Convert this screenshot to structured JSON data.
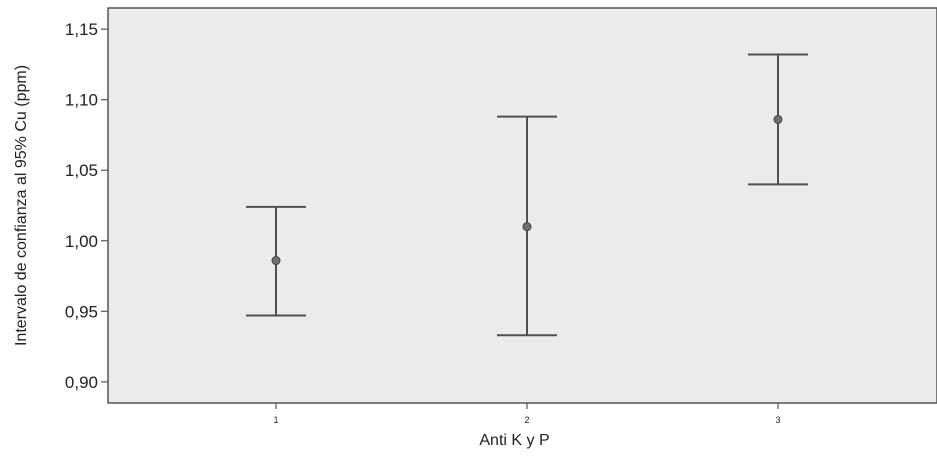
{
  "chart_data": {
    "type": "errorbar",
    "title": "",
    "xlabel": "Anti K y P",
    "ylabel": "Intervalo de confianza al 95% Cu (ppm)",
    "categories": [
      "1",
      "2",
      "3"
    ],
    "series": [
      {
        "points": [
          {
            "x": "1",
            "mean": 0.986,
            "lower": 0.947,
            "upper": 1.024
          },
          {
            "x": "2",
            "mean": 1.01,
            "lower": 0.933,
            "upper": 1.088
          },
          {
            "x": "3",
            "mean": 1.086,
            "lower": 1.04,
            "upper": 1.132
          }
        ]
      }
    ],
    "ylim": [
      0.885,
      1.165
    ],
    "yticks": [
      {
        "value": 0.9,
        "label": "0,90"
      },
      {
        "value": 0.95,
        "label": "0,95"
      },
      {
        "value": 1.0,
        "label": "1,00"
      },
      {
        "value": 1.05,
        "label": "1,05"
      },
      {
        "value": 1.1,
        "label": "1,10"
      },
      {
        "value": 1.15,
        "label": "1,15"
      }
    ],
    "grid": false,
    "legend": "none",
    "colors": {
      "plot_background": "#ebebeb",
      "frame": "#555555",
      "series": "#505050"
    }
  }
}
